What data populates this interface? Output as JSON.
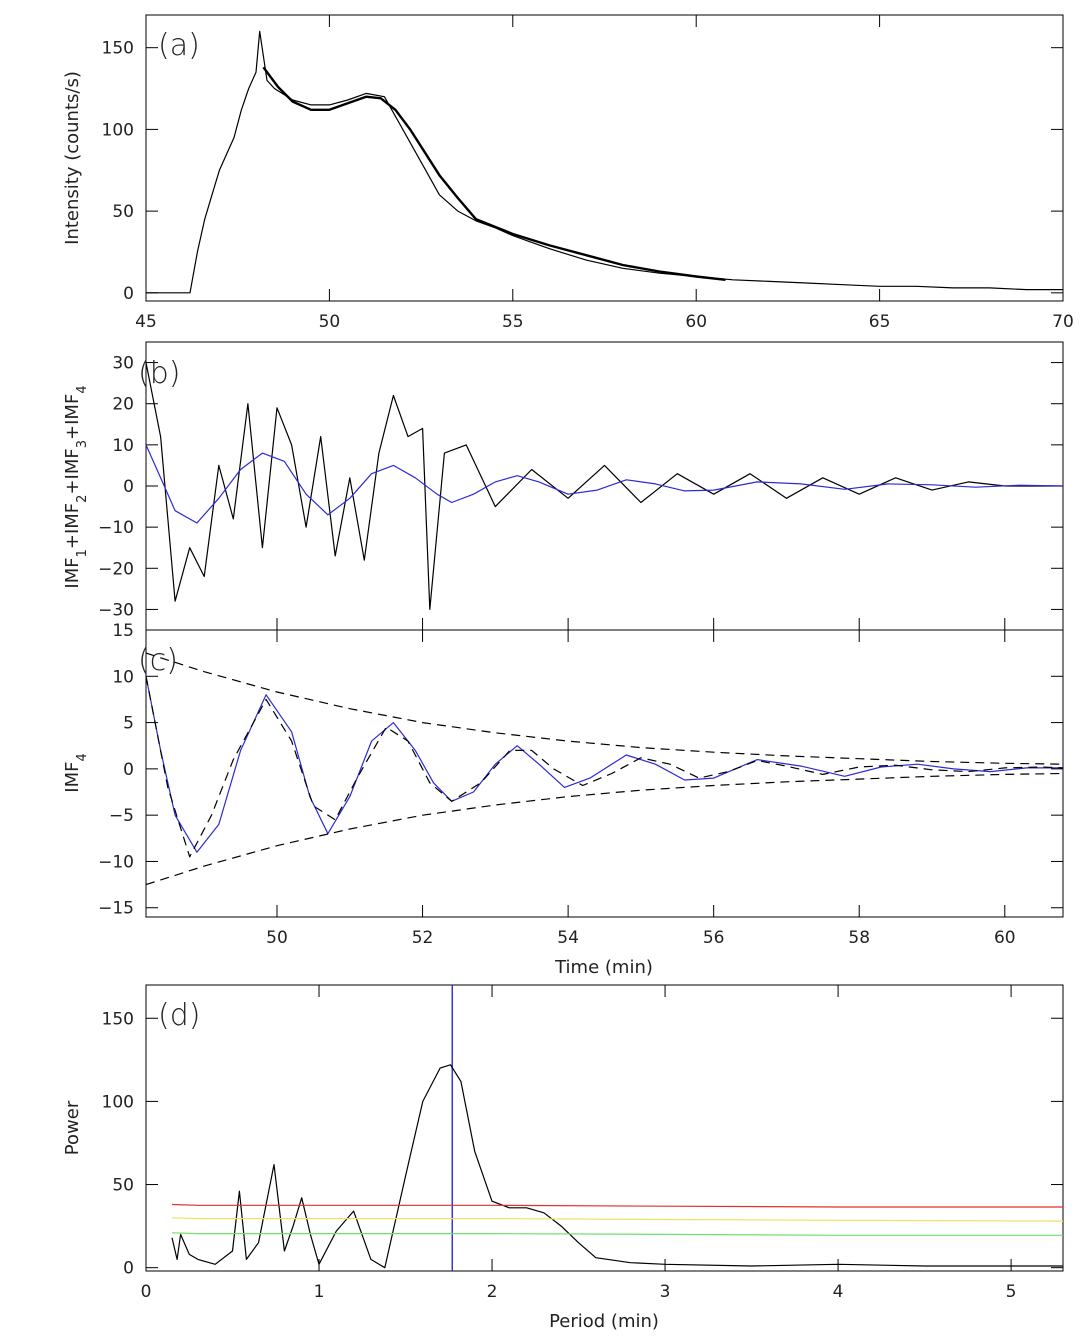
{
  "chart_data": [
    {
      "type": "line",
      "panel": "(a)",
      "xlabel": "",
      "ylabel": "Intensity (counts/s)",
      "xlim": [
        45,
        70
      ],
      "ylim": [
        -5,
        170
      ],
      "xticks": [
        45,
        50,
        55,
        60,
        65,
        70
      ],
      "yticks": [
        0,
        50,
        100,
        150
      ],
      "series": [
        {
          "name": "light curve",
          "color": "#000000",
          "x": [
            45,
            46.2,
            46.4,
            46.6,
            46.8,
            47.0,
            47.2,
            47.4,
            47.6,
            47.8,
            48.0,
            48.1,
            48.3,
            48.5,
            49.0,
            49.5,
            50.0,
            50.5,
            51.0,
            51.5,
            52.0,
            52.5,
            53.0,
            53.5,
            54.0,
            54.5,
            55.0,
            55.5,
            56.0,
            57.0,
            58.0,
            59.0,
            60.0,
            61.0,
            62.0,
            63.0,
            64.0,
            65.0,
            66.0,
            67.0,
            68.0,
            69.0,
            70.0
          ],
          "y": [
            0,
            0,
            25,
            45,
            60,
            75,
            85,
            95,
            112,
            125,
            135,
            160,
            130,
            125,
            118,
            115,
            115,
            118,
            122,
            120,
            100,
            80,
            60,
            50,
            44,
            40,
            35,
            31,
            27,
            20,
            15,
            12,
            10,
            8,
            7,
            6,
            5,
            4,
            4,
            3,
            3,
            2,
            2
          ]
        },
        {
          "name": "smoothed trend",
          "color": "#000000",
          "x": [
            48.2,
            48.6,
            49.0,
            49.5,
            50.0,
            50.5,
            51.0,
            51.4,
            51.8,
            52.2,
            52.6,
            53.0,
            53.5,
            54.0,
            55.0,
            56.0,
            57.0,
            58.0,
            59.0,
            60.0,
            60.8
          ],
          "y": [
            138,
            126,
            117,
            112,
            112,
            116,
            120,
            119,
            112,
            100,
            86,
            72,
            58,
            45,
            36,
            29,
            23,
            17,
            13,
            10,
            8
          ]
        }
      ]
    },
    {
      "type": "line",
      "panel": "(b)",
      "xlabel": "",
      "ylabel": "IMF1+IMF2+IMF3+IMF4",
      "xlim": [
        48.2,
        60.8
      ],
      "ylim": [
        -35,
        35
      ],
      "yticks": [
        -30,
        -20,
        -10,
        0,
        10,
        20,
        30
      ],
      "series": [
        {
          "name": "IMF sum",
          "color": "#000000",
          "x": [
            48.2,
            48.4,
            48.6,
            48.8,
            49.0,
            49.2,
            49.4,
            49.6,
            49.8,
            50.0,
            50.2,
            50.4,
            50.6,
            50.8,
            51.0,
            51.2,
            51.4,
            51.6,
            51.8,
            52.0,
            52.1,
            52.3,
            52.6,
            53.0,
            53.5,
            54.0,
            54.5,
            55.0,
            55.5,
            56.0,
            56.5,
            57.0,
            57.5,
            58.0,
            58.5,
            59.0,
            59.5,
            60.0,
            60.8
          ],
          "y": [
            30,
            12,
            -28,
            -15,
            -22,
            5,
            -8,
            20,
            -15,
            19,
            10,
            -10,
            12,
            -17,
            2,
            -18,
            8,
            22,
            12,
            14,
            -30,
            8,
            10,
            -5,
            4,
            -3,
            5,
            -4,
            3,
            -2,
            3,
            -3,
            2,
            -2,
            2,
            -1,
            1,
            0,
            0
          ]
        },
        {
          "name": "IMF4 (blue)",
          "color": "#2b2bd6",
          "x": [
            48.2,
            48.4,
            48.6,
            48.9,
            49.2,
            49.5,
            49.8,
            50.1,
            50.4,
            50.7,
            51.0,
            51.3,
            51.6,
            51.9,
            52.2,
            52.4,
            52.7,
            53.0,
            53.3,
            53.6,
            54.0,
            54.4,
            54.8,
            55.2,
            55.6,
            56.0,
            56.6,
            57.2,
            57.8,
            58.4,
            59.0,
            59.6,
            60.2,
            60.8
          ],
          "y": [
            10,
            2,
            -6,
            -9,
            -3,
            4,
            8,
            6,
            -2,
            -7,
            -3,
            3,
            5,
            2,
            -2,
            -4,
            -2,
            1,
            2.5,
            1,
            -2,
            -1,
            1.5,
            0.5,
            -1.2,
            -1,
            1,
            0.5,
            -0.8,
            0.5,
            0.3,
            -0.3,
            0.2,
            0
          ]
        }
      ]
    },
    {
      "type": "line",
      "panel": "(c)",
      "xlabel": "Time (min)",
      "ylabel": "IMF4",
      "xlim": [
        48.2,
        60.8
      ],
      "ylim": [
        -16,
        15
      ],
      "xticks": [
        50,
        52,
        54,
        56,
        58,
        60
      ],
      "yticks": [
        -15,
        -10,
        -5,
        0,
        5,
        10,
        15
      ],
      "series": [
        {
          "name": "IMF4 (blue)",
          "color": "#2b2bd6",
          "x": [
            48.2,
            48.4,
            48.6,
            48.9,
            49.2,
            49.5,
            49.85,
            50.2,
            50.45,
            50.7,
            51.0,
            51.3,
            51.6,
            51.9,
            52.15,
            52.4,
            52.7,
            53.0,
            53.3,
            53.6,
            53.95,
            54.3,
            54.8,
            55.2,
            55.6,
            56.0,
            56.6,
            57.2,
            57.8,
            58.3,
            58.8,
            59.3,
            59.8,
            60.3,
            60.8
          ],
          "y": [
            10,
            2,
            -5,
            -9,
            -6,
            2,
            8,
            4,
            -3,
            -7,
            -3,
            3,
            5,
            2,
            -1.5,
            -3.5,
            -2.5,
            0.5,
            2.5,
            0.5,
            -2,
            -1,
            1.5,
            0.5,
            -1.2,
            -1,
            1,
            0.3,
            -0.8,
            0.2,
            0.5,
            0,
            -0.3,
            0.1,
            0.1
          ]
        },
        {
          "name": "damped fit",
          "color": "#000000",
          "x": [
            48.2,
            48.5,
            48.8,
            49.1,
            49.4,
            49.85,
            50.2,
            50.5,
            50.8,
            51.1,
            51.5,
            51.8,
            52.1,
            52.4,
            52.8,
            53.2,
            53.5,
            53.8,
            54.2,
            54.6,
            55.0,
            55.4,
            55.8,
            56.2,
            56.6,
            57.0,
            57.5,
            58.0,
            58.5,
            59.0,
            59.5,
            60.0,
            60.5,
            60.8
          ],
          "y": [
            10,
            -2,
            -9.5,
            -5,
            1,
            7.5,
            3,
            -4,
            -5.5,
            -1,
            4.5,
            3,
            -1.5,
            -3.5,
            -1.5,
            2,
            2,
            0,
            -1.8,
            -0.5,
            1.2,
            0.5,
            -1,
            -0.3,
            0.9,
            0.3,
            -0.6,
            0.2,
            0.4,
            -0.1,
            -0.3,
            0.1,
            0.2,
            0.1
          ]
        },
        {
          "name": "upper envelope",
          "color": "#000000",
          "x": [
            48.2,
            49.0,
            50.0,
            51.0,
            52.0,
            53.0,
            54.0,
            55.0,
            56.0,
            57.0,
            58.0,
            59.0,
            60.0,
            60.8
          ],
          "y": [
            12.5,
            10.5,
            8.3,
            6.5,
            5.0,
            3.9,
            3.0,
            2.3,
            1.8,
            1.4,
            1.1,
            0.8,
            0.6,
            0.5
          ]
        },
        {
          "name": "lower envelope",
          "color": "#000000",
          "x": [
            48.2,
            49.0,
            50.0,
            51.0,
            52.0,
            53.0,
            54.0,
            55.0,
            56.0,
            57.0,
            58.0,
            59.0,
            60.0,
            60.8
          ],
          "y": [
            -12.5,
            -10.5,
            -8.3,
            -6.5,
            -5.0,
            -3.9,
            -3.0,
            -2.3,
            -1.8,
            -1.4,
            -1.1,
            -0.8,
            -0.6,
            -0.5
          ]
        }
      ]
    },
    {
      "type": "line",
      "panel": "(d)",
      "xlabel": "Period (min)",
      "ylabel": "Power",
      "xlim": [
        0,
        5.3
      ],
      "ylim": [
        -2,
        170
      ],
      "xticks": [
        0,
        1,
        2,
        3,
        4,
        5
      ],
      "yticks": [
        0,
        50,
        100,
        150
      ],
      "vline": {
        "x": 1.77,
        "color": "#2b2bd6"
      },
      "series": [
        {
          "name": "power spectrum",
          "color": "#000000",
          "x": [
            0.15,
            0.18,
            0.2,
            0.25,
            0.3,
            0.4,
            0.5,
            0.54,
            0.58,
            0.65,
            0.74,
            0.8,
            0.85,
            0.9,
            0.95,
            1.0,
            1.1,
            1.2,
            1.3,
            1.38,
            1.5,
            1.6,
            1.7,
            1.76,
            1.82,
            1.9,
            2.0,
            2.1,
            2.2,
            2.3,
            2.4,
            2.5,
            2.6,
            2.8,
            3.0,
            3.5,
            4.0,
            4.5,
            5.0,
            5.3
          ],
          "y": [
            18,
            5,
            20,
            8,
            5,
            2,
            10,
            46,
            5,
            15,
            62,
            10,
            25,
            42,
            20,
            2,
            22,
            34,
            5,
            0,
            55,
            100,
            120,
            122,
            112,
            70,
            40,
            36,
            36,
            33,
            25,
            15,
            6,
            3,
            2,
            1,
            2,
            1,
            1,
            1
          ]
        },
        {
          "name": "red level",
          "color": "#e0302a",
          "x": [
            0.15,
            0.3,
            1.0,
            2.0,
            3.0,
            4.0,
            5.3
          ],
          "y": [
            38,
            37.5,
            37.5,
            37.5,
            37,
            36.5,
            36.5
          ]
        },
        {
          "name": "yellow level",
          "color": "#f0e060",
          "x": [
            0.15,
            0.3,
            1.0,
            2.0,
            3.0,
            4.0,
            5.3
          ],
          "y": [
            30,
            29.5,
            29.5,
            29.5,
            29,
            28.5,
            28
          ]
        },
        {
          "name": "green level",
          "color": "#6fe06a",
          "x": [
            0.15,
            0.3,
            1.0,
            2.0,
            3.0,
            4.0,
            5.3
          ],
          "y": [
            21,
            20.5,
            20.5,
            20.5,
            20,
            19.5,
            19.5
          ]
        }
      ]
    }
  ]
}
